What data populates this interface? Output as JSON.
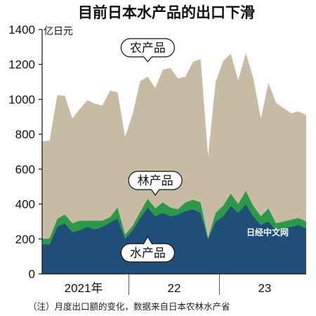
{
  "chart_data": {
    "type": "area",
    "title": "目前日本水产品的出口下滑",
    "ylabel": "亿日元",
    "ylim": [
      0,
      1400
    ],
    "yticks": [
      0,
      200,
      400,
      600,
      800,
      1000,
      1200,
      1400
    ],
    "grid": false,
    "stacked": true,
    "x_periods": [
      "2021-01",
      "2021-02",
      "2021-03",
      "2021-04",
      "2021-05",
      "2021-06",
      "2021-07",
      "2021-08",
      "2021-09",
      "2021-10",
      "2021-11",
      "2021-12",
      "2022-01",
      "2022-02",
      "2022-03",
      "2022-04",
      "2022-05",
      "2022-06",
      "2022-07",
      "2022-08",
      "2022-09",
      "2022-10",
      "2022-11",
      "2022-12",
      "2023-01",
      "2023-02",
      "2023-03",
      "2023-04",
      "2023-05",
      "2023-06",
      "2023-07",
      "2023-08",
      "2023-09",
      "2023-10",
      "2023-11",
      "2023-12"
    ],
    "year_labels": [
      "2021年",
      "22",
      "23"
    ],
    "series": [
      {
        "name": "水产品",
        "color": "#1f4e79",
        "values": [
          170,
          168,
          270,
          290,
          240,
          250,
          270,
          255,
          270,
          295,
          320,
          200,
          250,
          320,
          380,
          330,
          350,
          330,
          340,
          360,
          370,
          350,
          200,
          300,
          330,
          390,
          350,
          400,
          330,
          280,
          300,
          250,
          260,
          270,
          280,
          260
        ]
      },
      {
        "name": "林产品",
        "color": "#2a9a4a",
        "values": [
          30,
          35,
          45,
          50,
          50,
          55,
          35,
          50,
          35,
          30,
          60,
          25,
          25,
          35,
          50,
          45,
          60,
          50,
          30,
          50,
          55,
          60,
          5,
          50,
          60,
          70,
          50,
          75,
          60,
          50,
          75,
          40,
          40,
          40,
          40,
          40
        ]
      },
      {
        "name": "农产品",
        "color": "#c8bba3",
        "values": [
          560,
          560,
          710,
          680,
          600,
          640,
          690,
          670,
          660,
          725,
          660,
          560,
          640,
          750,
          700,
          690,
          760,
          800,
          750,
          720,
          790,
          820,
          470,
          750,
          830,
          800,
          710,
          790,
          730,
          560,
          720,
          690,
          650,
          610,
          610,
          610
        ]
      }
    ],
    "note": "（注）月度出口额的变化，数据来自日本农林水产省"
  },
  "watermark": "日经中文网"
}
